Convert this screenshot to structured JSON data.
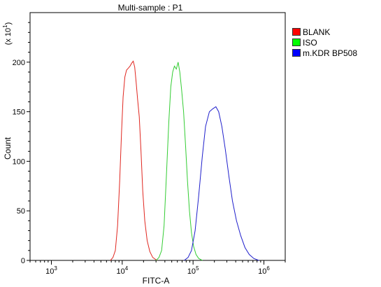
{
  "chart_data": {
    "type": "line",
    "title": "Multi-sample : P1",
    "xlabel": "FITC-A",
    "ylabel": "Count",
    "ylabel_multiplier": "(x 10",
    "ylabel_multiplier_exp": "1",
    "ylabel_multiplier_close": ")",
    "x_scale": "log",
    "xlim": [
      500,
      2000000
    ],
    "ylim": [
      0,
      250
    ],
    "x_ticks": [
      {
        "value": 1000,
        "base": "10",
        "exp": "3"
      },
      {
        "value": 10000,
        "base": "10",
        "exp": "4"
      },
      {
        "value": 100000,
        "base": "10",
        "exp": "5"
      },
      {
        "value": 1000000,
        "base": "10",
        "exp": "6"
      }
    ],
    "y_ticks": [
      "0",
      "50",
      "100",
      "150",
      "200"
    ],
    "y_tick_values": [
      0,
      50,
      100,
      150,
      200
    ],
    "legend_position": "right",
    "series": [
      {
        "name": "BLANK",
        "color": "#e0261f",
        "legend_color": "#ff0000",
        "points": [
          [
            6800,
            0
          ],
          [
            7400,
            3
          ],
          [
            8000,
            10
          ],
          [
            8600,
            35
          ],
          [
            9200,
            80
          ],
          [
            9800,
            130
          ],
          [
            10300,
            165
          ],
          [
            10900,
            185
          ],
          [
            11500,
            192
          ],
          [
            12200,
            194
          ],
          [
            12900,
            196
          ],
          [
            13600,
            199
          ],
          [
            14300,
            201
          ],
          [
            15000,
            195
          ],
          [
            15700,
            180
          ],
          [
            16500,
            162
          ],
          [
            17400,
            145
          ],
          [
            18400,
            110
          ],
          [
            19500,
            70
          ],
          [
            20800,
            40
          ],
          [
            22500,
            20
          ],
          [
            24500,
            9
          ],
          [
            27000,
            3
          ],
          [
            31000,
            0
          ]
        ]
      },
      {
        "name": "ISO",
        "color": "#33cc33",
        "legend_color": "#00ff00",
        "points": [
          [
            30000,
            0
          ],
          [
            33000,
            3
          ],
          [
            36000,
            10
          ],
          [
            39000,
            35
          ],
          [
            42000,
            85
          ],
          [
            45500,
            140
          ],
          [
            48500,
            175
          ],
          [
            51500,
            190
          ],
          [
            54500,
            196
          ],
          [
            58000,
            193
          ],
          [
            61500,
            200
          ],
          [
            65000,
            190
          ],
          [
            69000,
            172
          ],
          [
            73500,
            150
          ],
          [
            78500,
            115
          ],
          [
            83500,
            80
          ],
          [
            89000,
            50
          ],
          [
            95000,
            28
          ],
          [
            102000,
            14
          ],
          [
            110000,
            6
          ],
          [
            120000,
            2
          ],
          [
            135000,
            0
          ]
        ]
      },
      {
        "name": "m.KDR BP508",
        "color": "#1f1fcc",
        "legend_color": "#0000ff",
        "points": [
          [
            75000,
            0
          ],
          [
            85000,
            3
          ],
          [
            95000,
            10
          ],
          [
            107000,
            30
          ],
          [
            120000,
            65
          ],
          [
            135000,
            105
          ],
          [
            150000,
            135
          ],
          [
            170000,
            150
          ],
          [
            190000,
            153
          ],
          [
            210000,
            155
          ],
          [
            230000,
            150
          ],
          [
            255000,
            135
          ],
          [
            285000,
            112
          ],
          [
            320000,
            85
          ],
          [
            360000,
            60
          ],
          [
            410000,
            40
          ],
          [
            470000,
            25
          ],
          [
            540000,
            13
          ],
          [
            620000,
            6
          ],
          [
            720000,
            2
          ],
          [
            850000,
            0
          ]
        ]
      }
    ]
  }
}
